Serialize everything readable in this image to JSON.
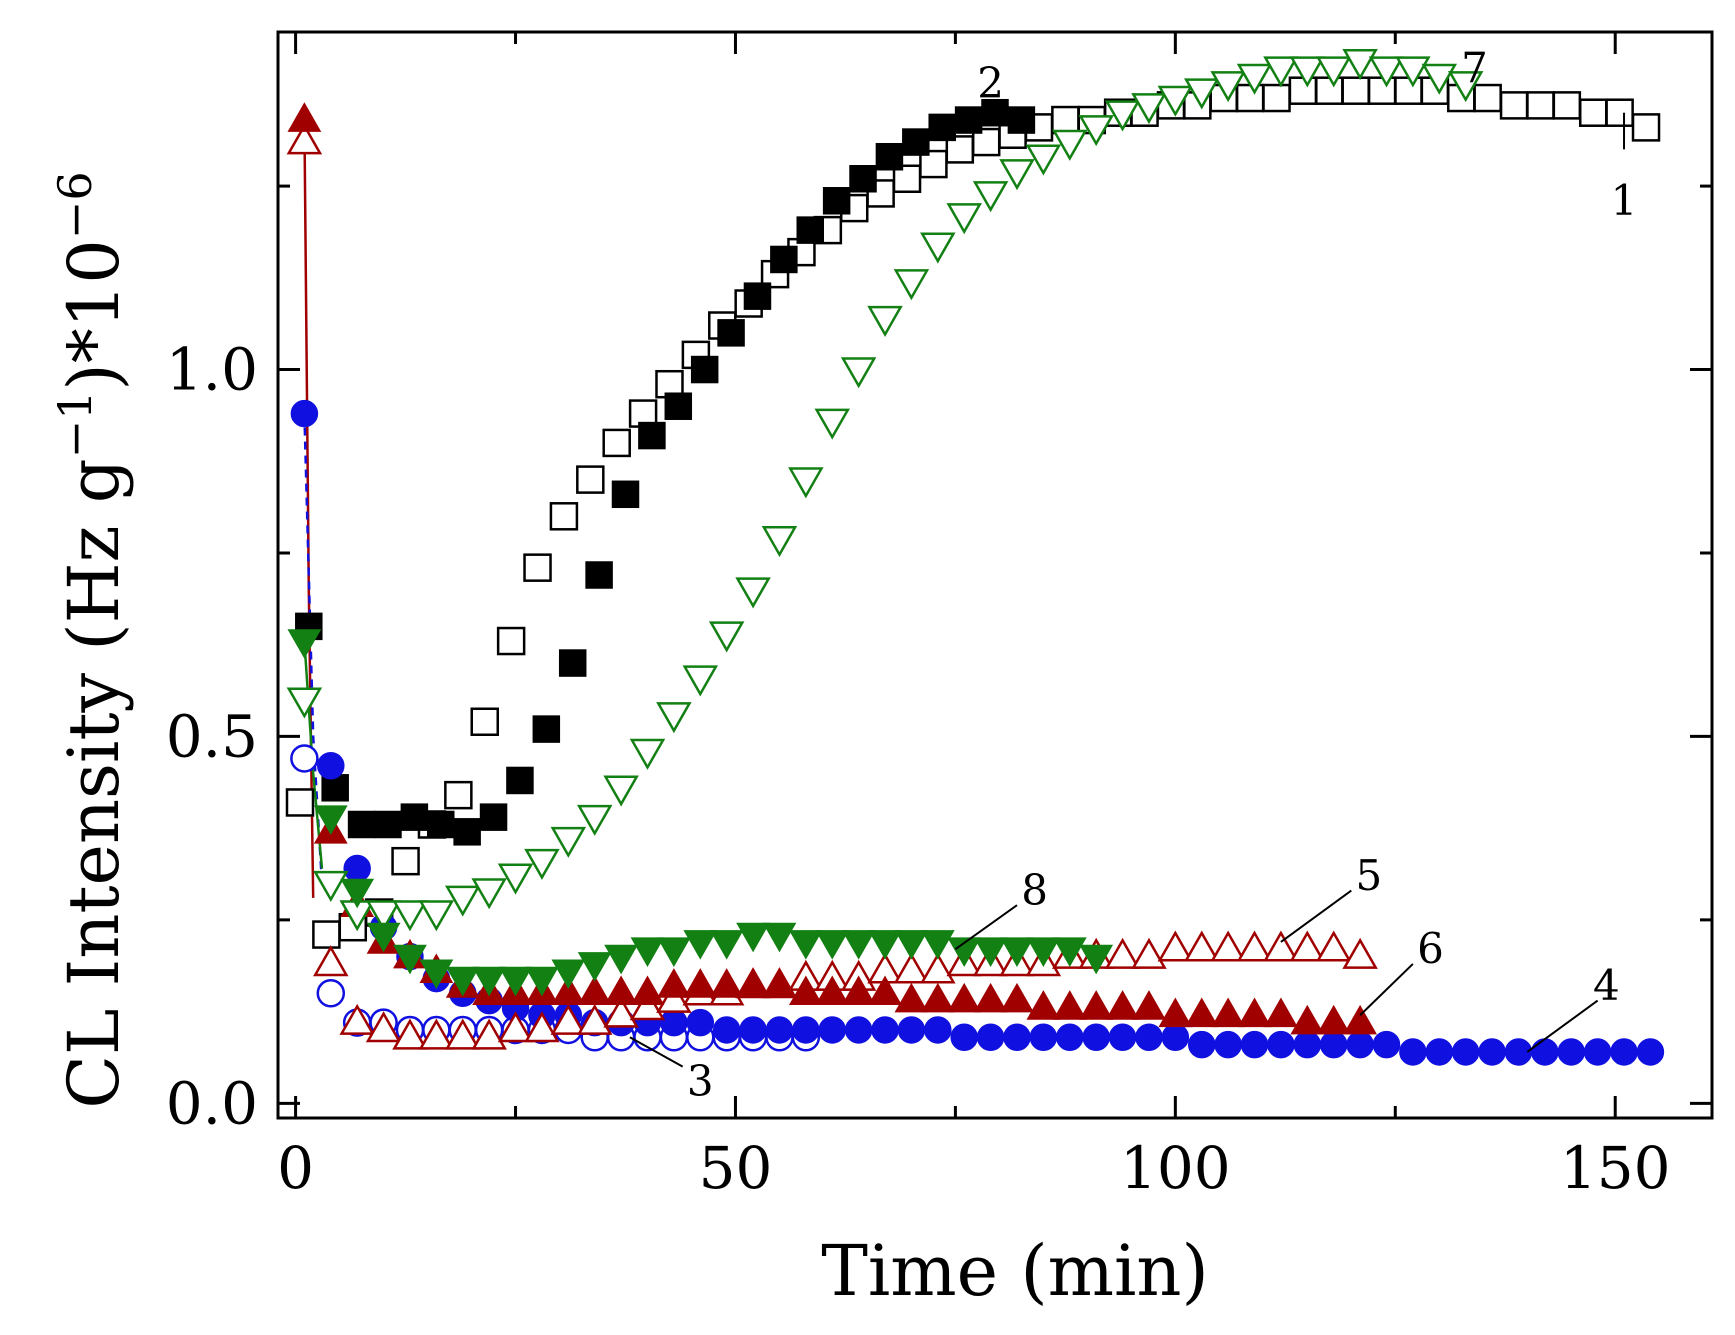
{
  "chart_data": {
    "type": "scatter",
    "title": "",
    "xlabel": "Time (min)",
    "ylabel_main": "CL Intensity (Hz g",
    "ylabel_sup1": "−1",
    "ylabel_mid": ")*10",
    "ylabel_sup2": "−6",
    "xlim": [
      -2,
      161
    ],
    "ylim": [
      -0.02,
      1.46
    ],
    "x_ticks": [
      0,
      50,
      100,
      150
    ],
    "x_tick_labels": [
      "0",
      "50",
      "100",
      "150"
    ],
    "y_ticks": [
      0.0,
      0.5,
      1.0
    ],
    "y_tick_labels": [
      "0.0",
      "0.5",
      "1.0"
    ],
    "grid": false,
    "colors": {
      "black": "#000000",
      "blue": "#1010e0",
      "red": "#a00000",
      "green": "#128012"
    },
    "series": [
      {
        "name": "1",
        "marker": "square",
        "filled": false,
        "color": "#000000",
        "x": [
          0.5,
          3.5,
          6.5,
          9.5,
          12.5,
          15.5,
          18.5,
          21.5,
          24.5,
          27.5,
          30.5,
          33.5,
          36.5,
          39.5,
          42.5,
          45.5,
          48.5,
          51.5,
          54.5,
          57.5,
          60.5,
          63.5,
          66.5,
          69.5,
          72.5,
          75.5,
          78.5,
          81.5,
          84.5,
          87.5,
          90.5,
          93.5,
          96.5,
          99.5,
          102.5,
          105.5,
          108.5,
          111.5,
          114.5,
          117.5,
          120.5,
          123.5,
          126.5,
          129.5,
          132.5,
          135.5,
          138.5,
          141.5,
          144.5,
          147.5,
          150.5,
          153.5
        ],
        "y": [
          0.41,
          0.23,
          0.24,
          0.26,
          0.33,
          0.38,
          0.42,
          0.52,
          0.63,
          0.73,
          0.8,
          0.85,
          0.9,
          0.94,
          0.98,
          1.02,
          1.06,
          1.09,
          1.13,
          1.16,
          1.19,
          1.22,
          1.24,
          1.26,
          1.28,
          1.3,
          1.31,
          1.32,
          1.33,
          1.34,
          1.34,
          1.35,
          1.35,
          1.36,
          1.36,
          1.37,
          1.37,
          1.37,
          1.38,
          1.38,
          1.38,
          1.38,
          1.38,
          1.38,
          1.37,
          1.37,
          1.36,
          1.36,
          1.36,
          1.35,
          1.35,
          1.33
        ]
      },
      {
        "name": "2",
        "marker": "square",
        "filled": true,
        "color": "#000000",
        "x": [
          1.5,
          4.5,
          7.5,
          10.5,
          13.5,
          16.5,
          19.5,
          22.5,
          25.5,
          28.5,
          31.5,
          34.5,
          37.5,
          40.5,
          43.5,
          46.5,
          49.5,
          52.5,
          55.5,
          58.5,
          61.5,
          64.5,
          67.5,
          70.5,
          73.5,
          76.5,
          79.5,
          82.5
        ],
        "y": [
          0.65,
          0.43,
          0.38,
          0.38,
          0.39,
          0.38,
          0.37,
          0.39,
          0.44,
          0.51,
          0.6,
          0.72,
          0.83,
          0.91,
          0.95,
          1.0,
          1.05,
          1.1,
          1.15,
          1.19,
          1.23,
          1.26,
          1.29,
          1.31,
          1.33,
          1.34,
          1.35,
          1.34
        ]
      },
      {
        "name": "3",
        "marker": "circle",
        "filled": false,
        "color": "#1010e0",
        "x": [
          1,
          4,
          7,
          10,
          13,
          16,
          19,
          22,
          25,
          28,
          31,
          34,
          37,
          40,
          43,
          46,
          49,
          52,
          55,
          58
        ],
        "y": [
          0.47,
          0.15,
          0.11,
          0.11,
          0.1,
          0.1,
          0.1,
          0.1,
          0.1,
          0.1,
          0.1,
          0.09,
          0.09,
          0.09,
          0.09,
          0.09,
          0.09,
          0.09,
          0.09,
          0.09
        ]
      },
      {
        "name": "4",
        "marker": "circle",
        "filled": true,
        "color": "#1010e0",
        "x": [
          1,
          4,
          7,
          10,
          13,
          16,
          19,
          22,
          25,
          28,
          31,
          34,
          37,
          40,
          43,
          46,
          49,
          52,
          55,
          58,
          61,
          64,
          67,
          70,
          73,
          76,
          79,
          82,
          85,
          88,
          91,
          94,
          97,
          100,
          103,
          106,
          109,
          112,
          115,
          118,
          121,
          124,
          127,
          130,
          133,
          136,
          139,
          142,
          145,
          148,
          151,
          154
        ],
        "y": [
          0.94,
          0.46,
          0.32,
          0.24,
          0.2,
          0.17,
          0.15,
          0.14,
          0.13,
          0.12,
          0.12,
          0.11,
          0.11,
          0.11,
          0.11,
          0.11,
          0.1,
          0.1,
          0.1,
          0.1,
          0.1,
          0.1,
          0.1,
          0.1,
          0.1,
          0.09,
          0.09,
          0.09,
          0.09,
          0.09,
          0.09,
          0.09,
          0.09,
          0.09,
          0.08,
          0.08,
          0.08,
          0.08,
          0.08,
          0.08,
          0.08,
          0.08,
          0.07,
          0.07,
          0.07,
          0.07,
          0.07,
          0.07,
          0.07,
          0.07,
          0.07,
          0.07
        ]
      },
      {
        "name": "5",
        "marker": "triangle-up",
        "filled": false,
        "color": "#a00000",
        "x": [
          1,
          4,
          7,
          10,
          13,
          16,
          19,
          22,
          25,
          28,
          31,
          34,
          37,
          40,
          43,
          46,
          49,
          52,
          55,
          58,
          61,
          64,
          67,
          70,
          73,
          76,
          79,
          82,
          85,
          88,
          91,
          94,
          97,
          100,
          103,
          106,
          109,
          112,
          115,
          118,
          121
        ],
        "y": [
          1.31,
          0.19,
          0.11,
          0.1,
          0.09,
          0.09,
          0.09,
          0.09,
          0.1,
          0.1,
          0.11,
          0.11,
          0.12,
          0.13,
          0.14,
          0.15,
          0.15,
          0.16,
          0.16,
          0.17,
          0.17,
          0.17,
          0.18,
          0.18,
          0.18,
          0.19,
          0.19,
          0.19,
          0.19,
          0.2,
          0.2,
          0.2,
          0.2,
          0.21,
          0.21,
          0.21,
          0.21,
          0.21,
          0.21,
          0.21,
          0.2
        ]
      },
      {
        "name": "6",
        "marker": "triangle-up",
        "filled": true,
        "color": "#a00000",
        "x": [
          1,
          4,
          7,
          10,
          13,
          16,
          19,
          22,
          25,
          28,
          31,
          34,
          37,
          40,
          43,
          46,
          49,
          52,
          55,
          58,
          61,
          64,
          67,
          70,
          73,
          76,
          79,
          82,
          85,
          88,
          91,
          94,
          97,
          100,
          103,
          106,
          109,
          112,
          115,
          118,
          121
        ],
        "y": [
          1.34,
          0.37,
          0.27,
          0.22,
          0.2,
          0.18,
          0.16,
          0.15,
          0.15,
          0.15,
          0.15,
          0.15,
          0.15,
          0.15,
          0.16,
          0.16,
          0.16,
          0.16,
          0.16,
          0.15,
          0.15,
          0.15,
          0.15,
          0.14,
          0.14,
          0.14,
          0.14,
          0.14,
          0.13,
          0.13,
          0.13,
          0.13,
          0.13,
          0.12,
          0.12,
          0.12,
          0.12,
          0.12,
          0.11,
          0.11,
          0.11
        ]
      },
      {
        "name": "7",
        "marker": "triangle-down",
        "filled": false,
        "color": "#128012",
        "x": [
          1,
          4,
          7,
          10,
          13,
          16,
          19,
          22,
          25,
          28,
          31,
          34,
          37,
          40,
          43,
          46,
          49,
          52,
          55,
          58,
          61,
          64,
          67,
          70,
          73,
          76,
          79,
          82,
          85,
          88,
          91,
          94,
          97,
          100,
          103,
          106,
          109,
          112,
          115,
          118,
          121,
          124,
          127,
          130,
          133
        ],
        "y": [
          0.55,
          0.3,
          0.26,
          0.26,
          0.26,
          0.26,
          0.28,
          0.29,
          0.31,
          0.33,
          0.36,
          0.39,
          0.43,
          0.48,
          0.53,
          0.58,
          0.64,
          0.7,
          0.77,
          0.85,
          0.93,
          1.0,
          1.07,
          1.12,
          1.17,
          1.21,
          1.24,
          1.27,
          1.29,
          1.31,
          1.33,
          1.35,
          1.36,
          1.37,
          1.38,
          1.39,
          1.4,
          1.41,
          1.41,
          1.41,
          1.42,
          1.41,
          1.41,
          1.4,
          1.39
        ]
      },
      {
        "name": "8",
        "marker": "triangle-down",
        "filled": true,
        "color": "#128012",
        "x": [
          1,
          4,
          7,
          10,
          13,
          16,
          19,
          22,
          25,
          28,
          31,
          34,
          37,
          40,
          43,
          46,
          49,
          52,
          55,
          58,
          61,
          64,
          67,
          70,
          73,
          76,
          79,
          82,
          85,
          88,
          91
        ],
        "y": [
          0.63,
          0.39,
          0.29,
          0.23,
          0.2,
          0.18,
          0.17,
          0.17,
          0.17,
          0.17,
          0.18,
          0.19,
          0.2,
          0.21,
          0.21,
          0.22,
          0.22,
          0.23,
          0.23,
          0.22,
          0.22,
          0.22,
          0.22,
          0.22,
          0.22,
          0.21,
          0.21,
          0.21,
          0.21,
          0.21,
          0.2
        ]
      }
    ],
    "initial_lines": [
      {
        "color": "#a00000",
        "dash": false,
        "x": [
          1,
          1.5,
          2
        ],
        "y": [
          1.34,
          0.7,
          0.28
        ]
      },
      {
        "color": "#1010e0",
        "dash": true,
        "x": [
          1,
          2,
          3
        ],
        "y": [
          0.94,
          0.5,
          0.3
        ]
      },
      {
        "color": "#128012",
        "dash": false,
        "x": [
          1,
          2,
          3
        ],
        "y": [
          0.63,
          0.45,
          0.32
        ]
      }
    ],
    "annotations": [
      {
        "text": "1",
        "x": 151,
        "y": 1.23,
        "line_from": [
          151,
          1.3
        ],
        "line_to": [
          151,
          1.35
        ]
      },
      {
        "text": "2",
        "x": 79,
        "y": 1.39,
        "line_from": null,
        "line_to": null
      },
      {
        "text": "3",
        "x": 46,
        "y": 0.03,
        "line_from": [
          38,
          0.09
        ],
        "line_to": [
          44,
          0.05
        ]
      },
      {
        "text": "4",
        "x": 149,
        "y": 0.16,
        "line_from": [
          148,
          0.14
        ],
        "line_to": [
          140,
          0.07
        ]
      },
      {
        "text": "5",
        "x": 122,
        "y": 0.31,
        "line_from": [
          120,
          0.29
        ],
        "line_to": [
          112,
          0.22
        ]
      },
      {
        "text": "6",
        "x": 129,
        "y": 0.21,
        "line_from": [
          127,
          0.19
        ],
        "line_to": [
          121,
          0.12
        ]
      },
      {
        "text": "7",
        "x": 134,
        "y": 1.41,
        "line_from": null,
        "line_to": null
      },
      {
        "text": "8",
        "x": 84,
        "y": 0.29,
        "line_from": [
          82,
          0.27
        ],
        "line_to": [
          75,
          0.21
        ]
      }
    ]
  }
}
